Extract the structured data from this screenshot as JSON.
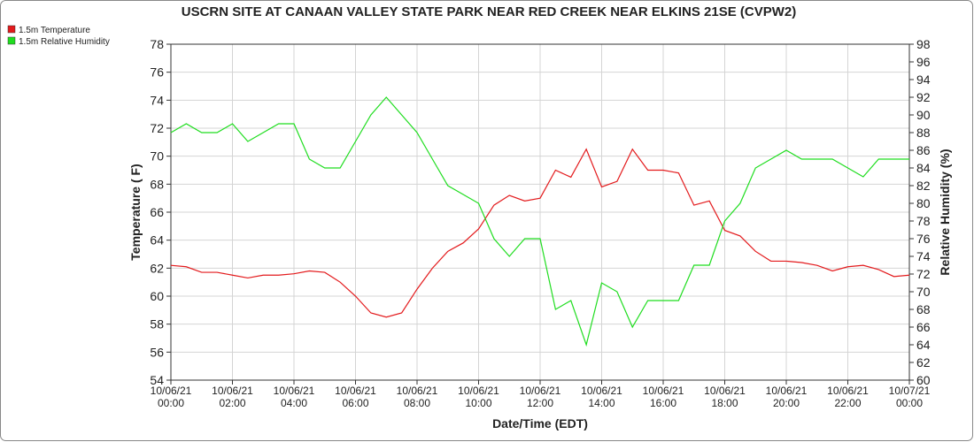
{
  "chart_data": {
    "type": "line",
    "title": "USCRN SITE AT CANAAN VALLEY STATE PARK NEAR RED CREEK NEAR ELKINS 21SE (CVPW2)",
    "xlabel": "Date/Time (EDT)",
    "ylabel": "Temperature ( F)",
    "y2label": "Relative Humidity (%)",
    "x": [
      "10/06/21 00:00",
      "10/06/21 00:30",
      "10/06/21 01:00",
      "10/06/21 01:30",
      "10/06/21 02:00",
      "10/06/21 02:30",
      "10/06/21 03:00",
      "10/06/21 03:30",
      "10/06/21 04:00",
      "10/06/21 04:30",
      "10/06/21 05:00",
      "10/06/21 05:30",
      "10/06/21 06:00",
      "10/06/21 06:30",
      "10/06/21 07:00",
      "10/06/21 07:30",
      "10/06/21 08:00",
      "10/06/21 08:30",
      "10/06/21 09:00",
      "10/06/21 09:30",
      "10/06/21 10:00",
      "10/06/21 10:30",
      "10/06/21 11:00",
      "10/06/21 11:30",
      "10/06/21 12:00",
      "10/06/21 12:30",
      "10/06/21 13:00",
      "10/06/21 13:30",
      "10/06/21 14:00",
      "10/06/21 14:30",
      "10/06/21 15:00",
      "10/06/21 15:30",
      "10/06/21 16:00",
      "10/06/21 16:30",
      "10/06/21 17:00",
      "10/06/21 17:30",
      "10/06/21 18:00",
      "10/06/21 18:30",
      "10/06/21 19:00",
      "10/06/21 19:30",
      "10/06/21 20:00",
      "10/06/21 20:30",
      "10/06/21 21:00",
      "10/06/21 21:30",
      "10/06/21 22:00",
      "10/06/21 22:30",
      "10/06/21 23:00",
      "10/06/21 23:30",
      "10/07/21 00:00"
    ],
    "series": [
      {
        "name": "1.5m Temperature",
        "color": "#e31a1c",
        "axis": "y",
        "values": [
          62.2,
          62.1,
          61.7,
          61.7,
          61.5,
          61.3,
          61.5,
          61.5,
          61.6,
          61.8,
          61.7,
          61.0,
          60.0,
          58.8,
          58.5,
          58.8,
          60.5,
          62.0,
          63.2,
          63.8,
          64.8,
          66.5,
          67.2,
          66.8,
          67.0,
          69.0,
          68.5,
          70.5,
          67.8,
          68.2,
          70.5,
          69.0,
          69.0,
          68.8,
          66.5,
          66.8,
          64.7,
          64.3,
          63.2,
          62.5,
          62.5,
          62.4,
          62.2,
          61.8,
          62.1,
          62.2,
          61.9,
          61.4,
          61.5
        ]
      },
      {
        "name": "1.5m Relative Humidity",
        "color": "#1fdd1f",
        "axis": "y2",
        "values": [
          88,
          89,
          88,
          88,
          89,
          87,
          88,
          89,
          89,
          85,
          84,
          84,
          87,
          90,
          92,
          90,
          88,
          85,
          82,
          81,
          80,
          76,
          74,
          76,
          76,
          68,
          69,
          64,
          71,
          70,
          66,
          69,
          69,
          69,
          73,
          73,
          78,
          80,
          84,
          85,
          86,
          85,
          85,
          85,
          84,
          83,
          85,
          85,
          85
        ]
      }
    ],
    "xlim": [
      "10/06/21 00:00",
      "10/07/21 00:00"
    ],
    "xticks": [
      "10/06/21 00:00",
      "10/06/21 02:00",
      "10/06/21 04:00",
      "10/06/21 06:00",
      "10/06/21 08:00",
      "10/06/21 10:00",
      "10/06/21 12:00",
      "10/06/21 14:00",
      "10/06/21 16:00",
      "10/06/21 18:00",
      "10/06/21 20:00",
      "10/06/21 22:00",
      "10/07/21 00:00"
    ],
    "ylim": [
      54,
      78
    ],
    "yticks": [
      54,
      56,
      58,
      60,
      62,
      64,
      66,
      68,
      70,
      72,
      74,
      76,
      78
    ],
    "y2lim": [
      60,
      98
    ],
    "y2ticks": [
      60,
      62,
      64,
      66,
      68,
      70,
      72,
      74,
      76,
      78,
      80,
      82,
      84,
      86,
      88,
      90,
      92,
      94,
      96,
      98
    ],
    "grid": true,
    "legend": "top-left"
  }
}
